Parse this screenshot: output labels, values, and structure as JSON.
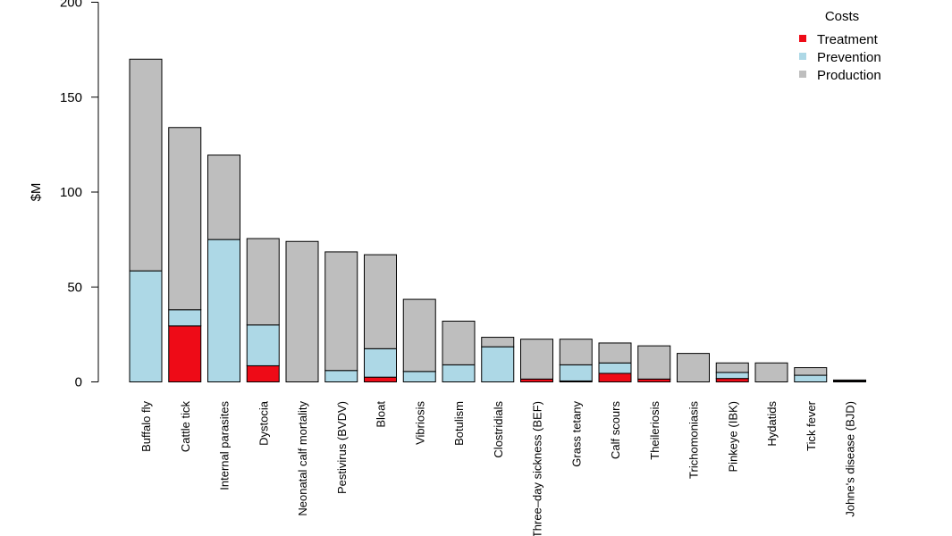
{
  "chart_data": {
    "type": "bar",
    "stacked": true,
    "ylabel": "$M",
    "ylim": [
      0,
      200
    ],
    "yticks": [
      0,
      50,
      100,
      150,
      200
    ],
    "categories": [
      "Buffalo fly",
      "Cattle tick",
      "Internal parasites",
      "Dystocia",
      "Neonatal calf mortality",
      "Pestivirus (BVDV)",
      "Bloat",
      "Vibriosis",
      "Botulism",
      "Clostridials",
      "Three–day sickness (BEF)",
      "Grass tetany",
      "Calf scours",
      "Theileriosis",
      "Trichomoniasis",
      "Pinkeye (IBK)",
      "Hydatids",
      "Tick fever",
      "Johne's disease (BJD)"
    ],
    "series": [
      {
        "name": "Treatment",
        "color": "#ee0b17",
        "values": [
          0,
          29.5,
          0,
          8.5,
          0,
          0,
          2.5,
          0,
          0,
          0,
          1.5,
          0.5,
          4.5,
          1.5,
          0,
          1.8,
          0,
          0,
          0.5
        ]
      },
      {
        "name": "Prevention",
        "color": "#add8e6",
        "values": [
          58.5,
          8.5,
          75,
          21.5,
          0,
          6,
          15,
          5.5,
          9,
          18.5,
          0,
          8.5,
          5.5,
          0,
          0,
          3.2,
          0,
          3.5,
          0
        ]
      },
      {
        "name": "Production",
        "color": "#bebebe",
        "values": [
          111.5,
          96,
          44.5,
          45.5,
          74,
          62.5,
          49.5,
          38,
          23,
          5,
          21,
          13.5,
          10.5,
          17.5,
          15,
          5,
          10,
          4,
          0.5
        ]
      }
    ],
    "legend": {
      "title": "Costs",
      "position": "top-right"
    },
    "grid": false
  }
}
